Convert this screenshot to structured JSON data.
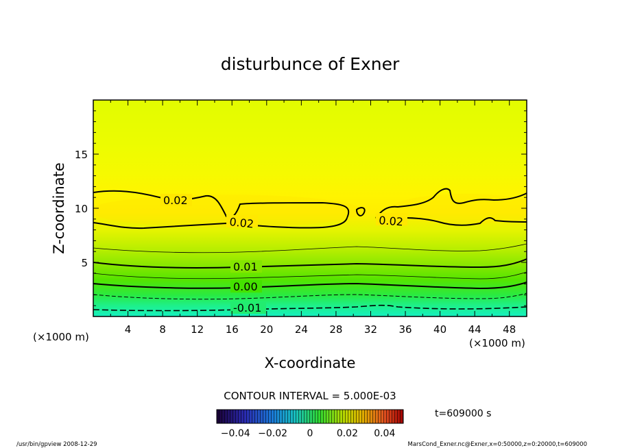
{
  "chart_data": {
    "type": "heatmap",
    "title": "disturbunce of Exner",
    "xlabel": "X-coordinate",
    "ylabel": "Z-coordinate",
    "x_unit": "(×1000 m)",
    "y_unit": "(×1000 m)",
    "xlim": [
      0,
      50
    ],
    "ylim": [
      0,
      20
    ],
    "x_ticks": [
      "4",
      "8",
      "12",
      "16",
      "20",
      "24",
      "28",
      "32",
      "36",
      "40",
      "44",
      "48"
    ],
    "y_ticks": [
      "5",
      "10",
      "15"
    ],
    "contour_labels": [
      "0.02",
      "0.02",
      "0.02",
      "0.01",
      "0.00",
      "-0.01"
    ],
    "contour_interval_text": "CONTOUR INTERVAL = 5.000E-03",
    "colorbar": {
      "range": [
        -0.05,
        0.05
      ],
      "tick_labels": [
        "-0.04",
        "-0.02",
        "0",
        "0.02",
        "0.04"
      ]
    },
    "time_label": "t=609000 s",
    "footer_left": "/usr/bin/gpview  2008-12-29",
    "footer_right": "MarsCond_Exner.nc@Exner,x=0:50000,z=0:20000,t=609000",
    "colors": {
      "low": "#16f0c0",
      "mid": "#3fe000",
      "high": "#ffee00"
    }
  }
}
